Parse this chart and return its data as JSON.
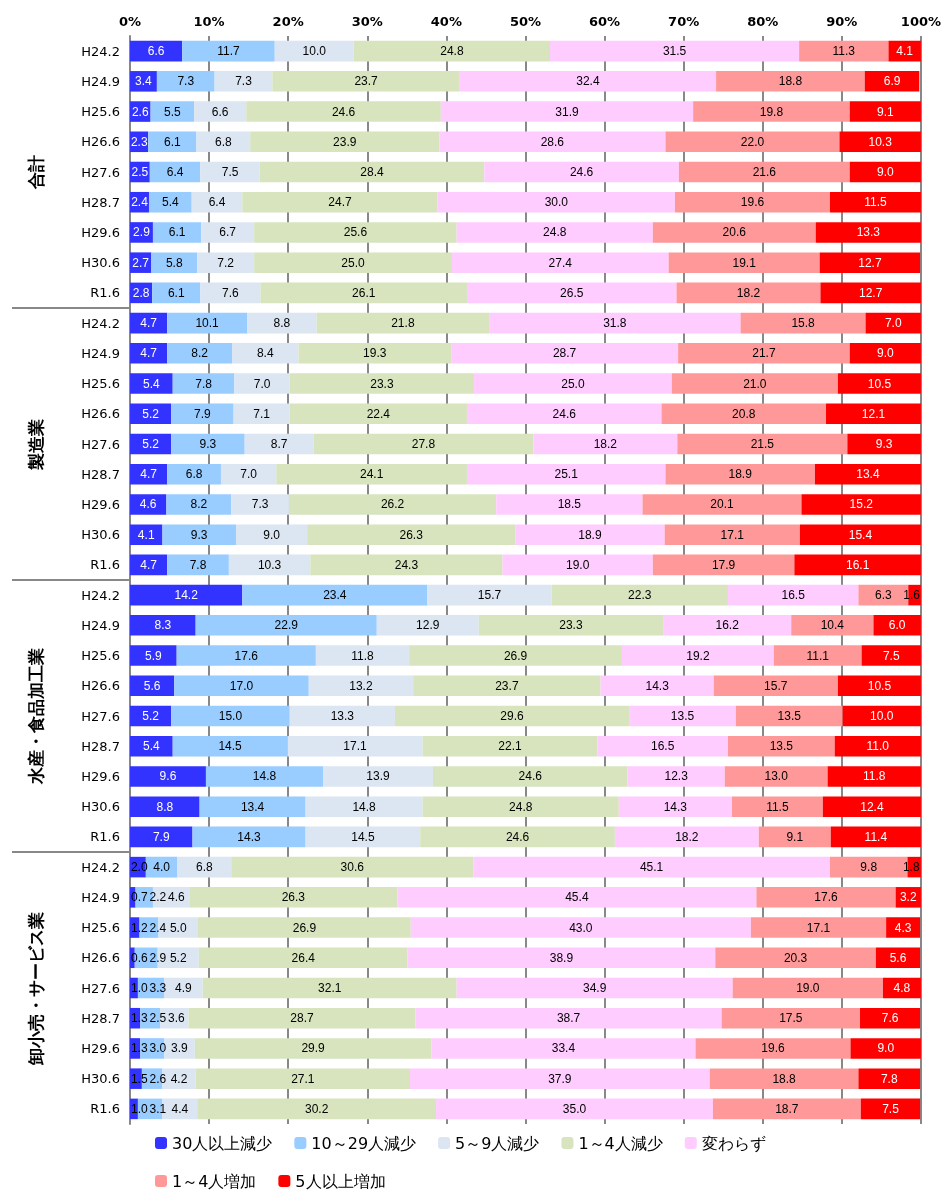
{
  "chart_data": {
    "type": "bar",
    "orientation": "horizontal",
    "stacked": true,
    "grid": "x",
    "legend": "bottom",
    "categories": [
      "H24.2",
      "H24.9",
      "H25.6",
      "H26.6",
      "H27.6",
      "H28.7",
      "H29.6",
      "H30.6",
      "R1.6",
      "H24.2",
      "H24.9",
      "H25.6",
      "H26.6",
      "H27.6",
      "H28.7",
      "H29.6",
      "H30.6",
      "R1.6",
      "H24.2",
      "H24.9",
      "H25.6",
      "H26.6",
      "H27.6",
      "H28.7",
      "H29.6",
      "H30.6",
      "R1.6",
      "H24.2",
      "H24.9",
      "H25.6",
      "H26.6",
      "H27.6",
      "H28.7",
      "H29.6",
      "H30.6",
      "R1.6"
    ],
    "annotations": [
      "合計",
      "製造業",
      "水産・食品加工業",
      "卸小売・サービス業"
    ],
    "xlim": [
      0,
      100
    ],
    "xticks": [
      {
        "value": 0,
        "label": "0%"
      },
      {
        "value": 10,
        "label": "10%"
      },
      {
        "value": 20,
        "label": "20%"
      },
      {
        "value": 30,
        "label": "30%"
      },
      {
        "value": 40,
        "label": "40%"
      },
      {
        "value": 50,
        "label": "50%"
      },
      {
        "value": 60,
        "label": "60%"
      },
      {
        "value": 70,
        "label": "70%"
      },
      {
        "value": 80,
        "label": "80%"
      },
      {
        "value": 90,
        "label": "90%"
      },
      {
        "value": 100,
        "label": "100%"
      }
    ],
    "series": [
      {
        "name": "30人以上減少",
        "color": "#3333ff",
        "values": [
          6.6,
          3.4,
          2.6,
          2.3,
          2.5,
          2.4,
          2.9,
          2.7,
          2.8,
          4.7,
          4.7,
          5.4,
          5.2,
          5.2,
          4.7,
          4.6,
          4.1,
          4.7,
          14.2,
          8.3,
          5.9,
          5.6,
          5.2,
          5.4,
          9.6,
          8.8,
          7.9,
          2.0,
          0.7,
          1.2,
          0.6,
          1.0,
          1.3,
          1.3,
          1.5,
          1.0
        ],
        "value_labels": [
          "6.6",
          "3.4",
          "2.6",
          "2.3",
          "2.5",
          "2.4",
          "2.9",
          "2.7",
          "2.8",
          "4.7",
          "4.7",
          "5.4",
          "5.2",
          "5.2",
          "4.7",
          "4.6",
          "4.1",
          "4.7",
          "14.2",
          "8.3",
          "5.9",
          "5.6",
          "5.2",
          "5.4",
          "9.6",
          "8.8",
          "7.9",
          "2.0",
          "0.7",
          "1.2",
          "0.6",
          "1.0",
          "1.3",
          "1.3",
          "1.5",
          "1.0"
        ]
      },
      {
        "name": "10～29人減少",
        "color": "#99ccff",
        "values": [
          11.7,
          7.3,
          5.5,
          6.1,
          6.4,
          5.4,
          6.1,
          5.8,
          6.1,
          10.1,
          8.2,
          7.8,
          7.9,
          9.3,
          6.8,
          8.2,
          9.3,
          7.8,
          23.4,
          22.9,
          17.6,
          17.0,
          15.0,
          14.5,
          14.8,
          13.4,
          14.3,
          4.0,
          2.2,
          2.4,
          2.9,
          3.3,
          2.5,
          3.0,
          2.6,
          3.1
        ],
        "value_labels": [
          "11.7",
          "7.3",
          "5.5",
          "6.1",
          "6.4",
          "5.4",
          "6.1",
          "5.8",
          "6.1",
          "10.1",
          "8.2",
          "7.8",
          "7.9",
          "9.3",
          "6.8",
          "8.2",
          "9.3",
          "7.8",
          "23.4",
          "22.9",
          "17.6",
          "17.0",
          "15.0",
          "14.5",
          "14.8",
          "13.4",
          "14.3",
          "4.0",
          "2.2",
          "2.4",
          "2.9",
          "3.3",
          "2.5",
          "3.0",
          "2.6",
          "3.1"
        ]
      },
      {
        "name": "5～9人減少",
        "color": "#dce6f2",
        "values": [
          10.0,
          7.3,
          6.6,
          6.8,
          7.5,
          6.4,
          6.7,
          7.2,
          7.6,
          8.8,
          8.4,
          7.0,
          7.1,
          8.7,
          7.0,
          7.3,
          9.0,
          10.3,
          15.7,
          12.9,
          11.8,
          13.2,
          13.3,
          17.1,
          13.9,
          14.8,
          14.5,
          6.8,
          4.6,
          5.0,
          5.2,
          4.9,
          3.6,
          3.9,
          4.2,
          4.4
        ],
        "value_labels": [
          "10.0",
          "7.3",
          "6.6",
          "6.8",
          "7.5",
          "6.4",
          "6.7",
          "7.2",
          "7.6",
          "8.8",
          "8.4",
          "7.0",
          "7.1",
          "8.7",
          "7.0",
          "7.3",
          "9.0",
          "10.3",
          "15.7",
          "12.9",
          "11.8",
          "13.2",
          "13.3",
          "17.1",
          "13.9",
          "14.8",
          "14.5",
          "6.8",
          "4.6",
          "5.0",
          "5.2",
          "4.9",
          "3.6",
          "3.9",
          "4.2",
          "4.4"
        ]
      },
      {
        "name": "1～4人減少",
        "color": "#d7e4bd",
        "values": [
          24.8,
          23.7,
          24.6,
          23.9,
          28.4,
          24.7,
          25.6,
          25.0,
          26.1,
          21.8,
          19.3,
          23.3,
          22.4,
          27.8,
          24.1,
          26.2,
          26.3,
          24.3,
          22.3,
          23.3,
          26.9,
          23.7,
          29.6,
          22.1,
          24.6,
          24.8,
          24.6,
          30.6,
          26.3,
          26.9,
          26.4,
          32.1,
          28.7,
          29.9,
          27.1,
          30.2
        ],
        "value_labels": [
          "24.8",
          "23.7",
          "24.6",
          "23.9",
          "28.4",
          "24.7",
          "25.6",
          "25.0",
          "26.1",
          "21.8",
          "19.3",
          "23.3",
          "22.4",
          "27.8",
          "24.1",
          "26.2",
          "26.3",
          "24.3",
          "22.3",
          "23.3",
          "26.9",
          "23.7",
          "29.6",
          "22.1",
          "24.6",
          "24.8",
          "24.6",
          "30.6",
          "26.3",
          "26.9",
          "26.4",
          "32.1",
          "28.7",
          "29.9",
          "27.1",
          "30.2"
        ]
      },
      {
        "name": "変わらず",
        "color": "#ffccff",
        "values": [
          31.5,
          32.4,
          31.9,
          28.6,
          24.6,
          30.0,
          24.8,
          27.4,
          26.5,
          31.8,
          28.7,
          25.0,
          24.6,
          18.2,
          25.1,
          18.5,
          18.9,
          19.0,
          16.5,
          16.2,
          19.2,
          14.3,
          13.5,
          16.5,
          12.3,
          14.3,
          18.2,
          45.1,
          45.4,
          43.0,
          38.9,
          34.9,
          38.7,
          33.4,
          37.9,
          35.0
        ],
        "value_labels": [
          "31.5",
          "32.4",
          "31.9",
          "28.6",
          "24.6",
          "30.0",
          "24.8",
          "27.4",
          "26.5",
          "31.8",
          "28.7",
          "25.0",
          "24.6",
          "18.2",
          "25.1",
          "18.5",
          "18.9",
          "19.0",
          "16.5",
          "16.2",
          "19.2",
          "14.3",
          "13.5",
          "16.5",
          "12.3",
          "14.3",
          "18.2",
          "45.1",
          "45.4",
          "43.0",
          "38.9",
          "34.9",
          "38.7",
          "33.4",
          "37.9",
          "35.0"
        ]
      },
      {
        "name": "1～4人増加",
        "color": "#ff9999",
        "values": [
          11.3,
          18.8,
          19.8,
          22.0,
          21.6,
          19.6,
          20.6,
          19.1,
          18.2,
          15.8,
          21.7,
          21.0,
          20.8,
          21.5,
          18.9,
          20.1,
          17.1,
          17.9,
          6.3,
          10.4,
          11.1,
          15.7,
          13.5,
          13.5,
          13.0,
          11.5,
          9.1,
          9.8,
          17.6,
          17.1,
          20.3,
          19.0,
          17.5,
          19.6,
          18.8,
          18.7
        ],
        "value_labels": [
          "11.3",
          "18.8",
          "19.8",
          "22.0",
          "21.6",
          "19.6",
          "20.6",
          "19.1",
          "18.2",
          "15.8",
          "21.7",
          "21.0",
          "20.8",
          "21.5",
          "18.9",
          "20.1",
          "17.1",
          "17.9",
          "6.3",
          "10.4",
          "11.1",
          "15.7",
          "13.5",
          "13.5",
          "13.0",
          "11.5",
          "9.1",
          "9.8",
          "17.6",
          "17.1",
          "20.3",
          "19.0",
          "17.5",
          "19.6",
          "18.8",
          "18.7"
        ]
      },
      {
        "name": "5人以上増加",
        "color": "#ff0000",
        "values": [
          4.1,
          6.9,
          9.1,
          10.3,
          9.0,
          11.5,
          13.3,
          12.7,
          12.7,
          7.0,
          9.0,
          10.5,
          12.1,
          9.3,
          13.4,
          15.2,
          15.4,
          16.1,
          1.6,
          6.0,
          7.5,
          10.5,
          10.0,
          11.0,
          11.8,
          12.4,
          11.4,
          1.8,
          3.2,
          4.3,
          5.6,
          4.8,
          7.6,
          9.0,
          7.8,
          7.5
        ],
        "value_labels": [
          "4.1",
          "6.9",
          "9.1",
          "10.3",
          "9.0",
          "11.5",
          "13.3",
          "12.7",
          "12.7",
          "7.0",
          "9.0",
          "10.5",
          "12.1",
          "9.3",
          "13.4",
          "15.2",
          "15.4",
          "16.1",
          "1.6",
          "6.0",
          "7.5",
          "10.5",
          "10.0",
          "11.0",
          "11.8",
          "12.4",
          "11.4",
          "1.8",
          "3.2",
          "4.3",
          "5.6",
          "4.8",
          "7.6",
          "9.0",
          "7.8",
          "7.5"
        ]
      }
    ]
  }
}
